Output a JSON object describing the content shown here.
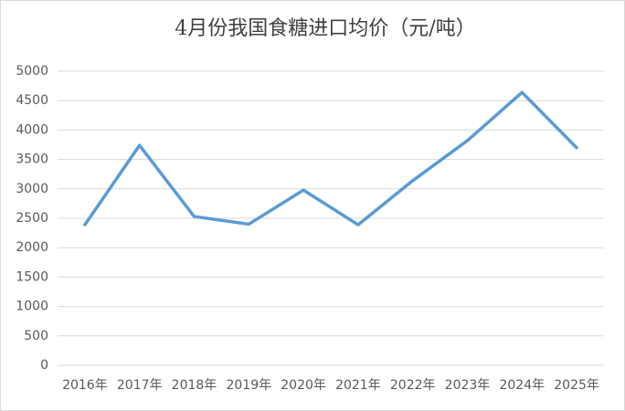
{
  "chart_data": {
    "type": "line",
    "title": "4月份我国食糖进口均价（元/吨）",
    "categories": [
      "2016年",
      "2017年",
      "2018年",
      "2019年",
      "2020年",
      "2021年",
      "2022年",
      "2023年",
      "2024年",
      "2025年"
    ],
    "values": [
      2390,
      3740,
      2530,
      2400,
      2980,
      2390,
      3140,
      3820,
      4640,
      3700
    ],
    "color": "#5b9bd5",
    "ylim": [
      0,
      5000
    ],
    "yticks": [
      0,
      500,
      1000,
      1500,
      2000,
      2500,
      3000,
      3500,
      4000,
      4500,
      5000
    ],
    "grid": true
  }
}
